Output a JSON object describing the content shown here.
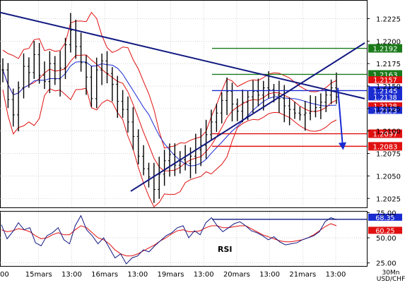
{
  "chart_data": {
    "type": "line",
    "instrument": "USD/CHF",
    "timeframe": "30Mn",
    "price_panel": {
      "ylim": [
        1.2015,
        1.2245
      ],
      "ticks": [
        "1.2225",
        "1.2200",
        "1.2175",
        "1.2150",
        "1.2125",
        "1.2100",
        "1.2075",
        "1.2050",
        "1.2025"
      ],
      "levels": [
        {
          "label": "1.2192",
          "value": 1.2192,
          "color": "#1a7a1a",
          "kind": "resistance"
        },
        {
          "label": "1.2163",
          "value": 1.2163,
          "color": "#1a7a1a",
          "kind": "resistance"
        },
        {
          "label": "1.2145",
          "value": 1.2145,
          "color": "#1a2bd0",
          "kind": "pivot"
        },
        {
          "label": "1.2097",
          "value": 1.2097,
          "color": "#e01010",
          "kind": "support"
        },
        {
          "label": "1.2083",
          "value": 1.2083,
          "color": "#e01010",
          "kind": "support"
        }
      ],
      "price_tags": [
        {
          "label": "1.2157",
          "value": 1.2157,
          "color": "#e01010"
        },
        {
          "label": "1.2138",
          "value": 1.2138,
          "color": "#1a2bd0"
        },
        {
          "label": "1.2128",
          "value": 1.2128,
          "color": "#e01010"
        },
        {
          "label": "1.2123",
          "value": 1.2123,
          "color": "#1a2bd0"
        }
      ],
      "trendlines": [
        {
          "name": "descending resistance",
          "start": 1.2232,
          "end": 1.2136,
          "color": "#101880"
        },
        {
          "name": "ascending support",
          "start": 1.2033,
          "end": 1.2198,
          "color": "#101880"
        }
      ],
      "forecast": "down",
      "close_series": [
        1.2168,
        1.2135,
        1.2118,
        1.2148,
        1.2172,
        1.2165,
        1.2185,
        1.2162,
        1.2155,
        1.2175,
        1.2158,
        1.217,
        1.2196,
        1.2212,
        1.2194,
        1.2176,
        1.216,
        1.2136,
        1.2168,
        1.2178,
        1.2164,
        1.2152,
        1.2133,
        1.2124,
        1.211,
        1.2094,
        1.2072,
        1.2058,
        1.2049,
        1.2035,
        1.2052,
        1.2067,
        1.2074,
        1.2062,
        1.2068,
        1.2064,
        1.2072,
        1.2079,
        1.2084,
        1.2096,
        1.211,
        1.212,
        1.2134,
        1.2144,
        1.213,
        1.2122,
        1.2132,
        1.2138,
        1.2144,
        1.214,
        1.2148,
        1.2146,
        1.214,
        1.2136,
        1.2128,
        1.2124,
        1.212,
        1.2118,
        1.212,
        1.2122,
        1.2126,
        1.2132,
        1.214,
        1.2148,
        1.2138
      ]
    },
    "rsi_panel": {
      "label": "RSI",
      "ylim": [
        22,
        76
      ],
      "ticks": [
        "75.00",
        "50.00",
        "25.00"
      ],
      "tags": [
        {
          "label": "68.35",
          "value": 68.35,
          "color": "#1a2bd0"
        },
        {
          "label": "60.25",
          "value": 60.25,
          "color": "#e01010"
        }
      ],
      "hline": {
        "value": 68.35,
        "color": "#101880"
      },
      "rsi_series": [
        63,
        49,
        56,
        65,
        58,
        60,
        45,
        42,
        52,
        55,
        60,
        48,
        44,
        62,
        72,
        58,
        52,
        44,
        50,
        40,
        30,
        34,
        24,
        30,
        32,
        38,
        36,
        42,
        47,
        52,
        55,
        60,
        62,
        50,
        57,
        53,
        65,
        70,
        62,
        56,
        60,
        64,
        66,
        62,
        57,
        55,
        52,
        48,
        51,
        46,
        43,
        44,
        45,
        48,
        50,
        52,
        56,
        66,
        70,
        68
      ],
      "signal_series": [
        58,
        56,
        57,
        59,
        58,
        56,
        52,
        49,
        50,
        53,
        55,
        53,
        53,
        58,
        62,
        60,
        55,
        50,
        48,
        44,
        38,
        34,
        32,
        32,
        34,
        37,
        40,
        43,
        47,
        50,
        54,
        57,
        58,
        56,
        56,
        57,
        60,
        62,
        62,
        60,
        60,
        61,
        62,
        62,
        59,
        56,
        53,
        51,
        49,
        47,
        46,
        46,
        47,
        48,
        50,
        53,
        57,
        61,
        64,
        62
      ]
    },
    "x_ticks": [
      "00",
      "15mars",
      "13:00",
      "16mars",
      "13:00",
      "19mars",
      "13:00",
      "20mars",
      "13:00",
      "21mars",
      "13:00"
    ],
    "timeframe_label": "30Mn",
    "pair_label": "USD/CHF"
  }
}
